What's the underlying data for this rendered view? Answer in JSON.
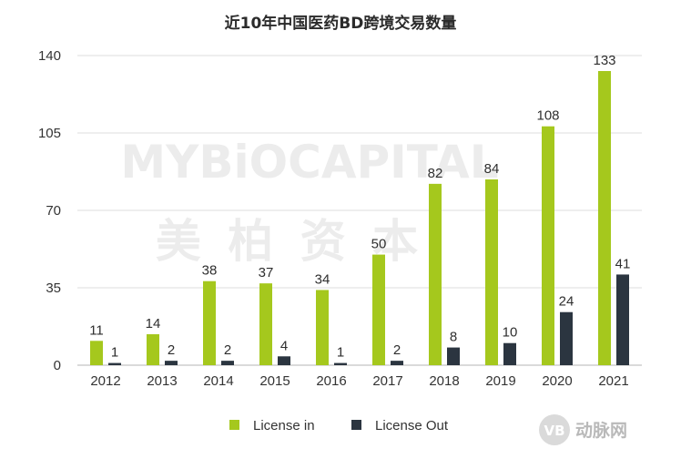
{
  "chart_data": {
    "type": "bar",
    "title": "近10年中国医药BD跨境交易数量",
    "categories": [
      "2012",
      "2013",
      "2014",
      "2015",
      "2016",
      "2017",
      "2018",
      "2019",
      "2020",
      "2021"
    ],
    "series": [
      {
        "name": "License in",
        "color": "#a5c81d",
        "values": [
          11,
          14,
          38,
          37,
          34,
          50,
          82,
          84,
          108,
          133
        ]
      },
      {
        "name": "License Out",
        "color": "#2b3540",
        "values": [
          1,
          2,
          2,
          4,
          1,
          2,
          8,
          10,
          24,
          41
        ]
      }
    ],
    "y_ticks": [
      0,
      35,
      70,
      105,
      140
    ],
    "ylim": [
      0,
      140
    ],
    "xlabel": "",
    "ylabel": "",
    "grid": true,
    "legend": "bottom-center"
  },
  "watermark": {
    "line1": "MYBiOCAPITAL",
    "line2": "美 柏 资 本"
  },
  "brand": {
    "badge": "VB",
    "name": "动脉网"
  }
}
